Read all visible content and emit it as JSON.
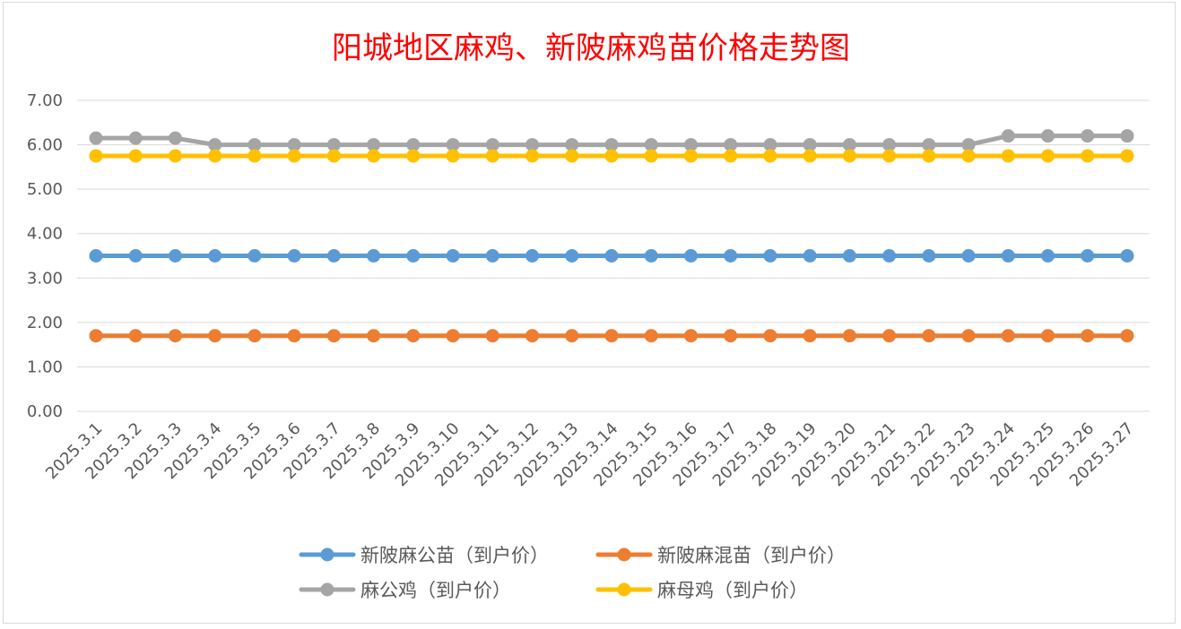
{
  "chart_data": {
    "type": "line",
    "title": "阳城地区麻鸡、新陂麻鸡苗价格走势图",
    "xlabel": "",
    "ylabel": "",
    "ylim": [
      0,
      7
    ],
    "yticks": [
      "0.00",
      "1.00",
      "2.00",
      "3.00",
      "4.00",
      "5.00",
      "6.00",
      "7.00"
    ],
    "grid": "horizontal",
    "legend_position": "bottom",
    "categories": [
      "2025.3.1",
      "2025.3.2",
      "2025.3.3",
      "2025.3.4",
      "2025.3.5",
      "2025.3.6",
      "2025.3.7",
      "2025.3.8",
      "2025.3.9",
      "2025.3.10",
      "2025.3.11",
      "2025.3.12",
      "2025.3.13",
      "2025.3.14",
      "2025.3.15",
      "2025.3.16",
      "2025.3.17",
      "2025.3.18",
      "2025.3.19",
      "2025.3.20",
      "2025.3.21",
      "2025.3.22",
      "2025.3.23",
      "2025.3.24",
      "2025.3.25",
      "2025.3.26",
      "2025.3.27"
    ],
    "series": [
      {
        "name": "新陂麻公苗（到户价）",
        "color": "#5b9bd5",
        "values": [
          3.5,
          3.5,
          3.5,
          3.5,
          3.5,
          3.5,
          3.5,
          3.5,
          3.5,
          3.5,
          3.5,
          3.5,
          3.5,
          3.5,
          3.5,
          3.5,
          3.5,
          3.5,
          3.5,
          3.5,
          3.5,
          3.5,
          3.5,
          3.5,
          3.5,
          3.5,
          3.5
        ]
      },
      {
        "name": "新陂麻混苗（到户价）",
        "color": "#ed7d31",
        "values": [
          1.7,
          1.7,
          1.7,
          1.7,
          1.7,
          1.7,
          1.7,
          1.7,
          1.7,
          1.7,
          1.7,
          1.7,
          1.7,
          1.7,
          1.7,
          1.7,
          1.7,
          1.7,
          1.7,
          1.7,
          1.7,
          1.7,
          1.7,
          1.7,
          1.7,
          1.7,
          1.7
        ]
      },
      {
        "name": "麻公鸡（到户价）",
        "color": "#a5a5a5",
        "values": [
          6.15,
          6.15,
          6.15,
          6.0,
          6.0,
          6.0,
          6.0,
          6.0,
          6.0,
          6.0,
          6.0,
          6.0,
          6.0,
          6.0,
          6.0,
          6.0,
          6.0,
          6.0,
          6.0,
          6.0,
          6.0,
          6.0,
          6.0,
          6.2,
          6.2,
          6.2,
          6.2
        ]
      },
      {
        "name": "麻母鸡（到户价）",
        "color": "#ffc000",
        "values": [
          5.75,
          5.75,
          5.75,
          5.75,
          5.75,
          5.75,
          5.75,
          5.75,
          5.75,
          5.75,
          5.75,
          5.75,
          5.75,
          5.75,
          5.75,
          5.75,
          5.75,
          5.75,
          5.75,
          5.75,
          5.75,
          5.75,
          5.75,
          5.75,
          5.75,
          5.75,
          5.75
        ]
      }
    ]
  }
}
